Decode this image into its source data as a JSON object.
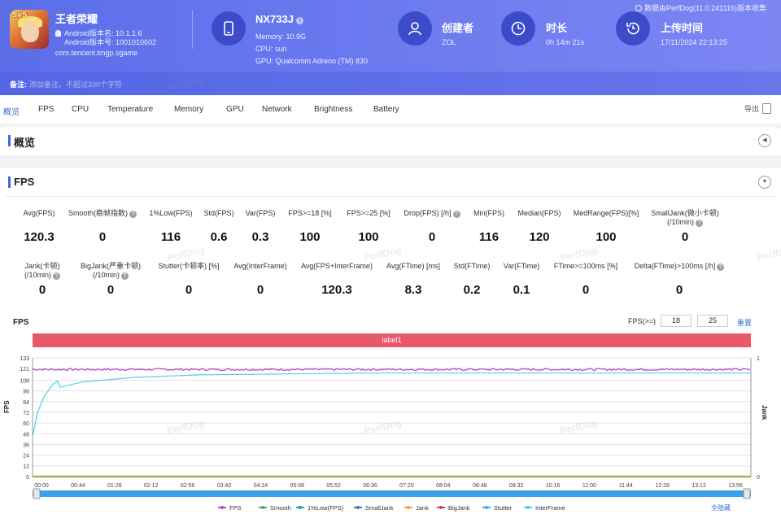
{
  "app": {
    "name": "王者荣耀",
    "icon_badge": "5v5",
    "version_name": "Android版本名: 10.1.1.6",
    "version_code": "Android版本号: 1001010602",
    "package": "com.tencent.tmgp.sgame"
  },
  "device": {
    "model": "NX733J",
    "memory": "Memory: 10.9G",
    "cpu": "CPU: sun",
    "gpu": "GPU: Qualcomm Adreno (TM) 830"
  },
  "creator": {
    "title": "创建者",
    "value": "ZOL"
  },
  "duration": {
    "title": "时长",
    "value": "0h 14m 21s"
  },
  "upload": {
    "title": "上传时间",
    "value": "17/11/2024 22:13:25"
  },
  "perfdog_note": "数据由PerfDog(11.0.241116)版本收集",
  "note": {
    "label": "备注:",
    "placeholder": "添加备注，不超过200个字符"
  },
  "tabs": [
    "概览",
    "FPS",
    "CPU",
    "Temperature",
    "Memory",
    "GPU",
    "Network",
    "Brightness",
    "Battery"
  ],
  "export_label": "导出",
  "overview_title": "概览",
  "fps_section_title": "FPS",
  "stats_row1": [
    {
      "label": "Avg(FPS)",
      "value": "120.3"
    },
    {
      "label": "Smooth(稳帧指数)",
      "value": "0",
      "help": true
    },
    {
      "label": "1%Low(FPS)",
      "value": "116"
    },
    {
      "label": "Std(FPS)",
      "value": "0.6"
    },
    {
      "label": "Var(FPS)",
      "value": "0.3"
    },
    {
      "label": "FPS>=18 [%]",
      "value": "100"
    },
    {
      "label": "FPS>=25 [%]",
      "value": "100"
    },
    {
      "label": "Drop(FPS) [/h]",
      "value": "0",
      "help": true
    },
    {
      "label": "Min(FPS)",
      "value": "116"
    },
    {
      "label": "Median(FPS)",
      "value": "120"
    },
    {
      "label": "MedRange(FPS)[%]",
      "value": "100"
    },
    {
      "label": "SmallJank(微小卡顿)",
      "label2": "(/10min)",
      "value": "0",
      "help": true
    }
  ],
  "stats_row2": [
    {
      "label": "Jank(卡顿)",
      "label2": "(/10min)",
      "value": "0",
      "help": true
    },
    {
      "label": "BigJank(严重卡顿)",
      "label2": "(/10min)",
      "value": "0",
      "help": true
    },
    {
      "label": "Stutter(卡顿率) [%]",
      "value": "0"
    },
    {
      "label": "Avg(InterFrame)",
      "value": "0"
    },
    {
      "label": "Avg(FPS+InterFrame)",
      "value": "120.3"
    },
    {
      "label": "Avg(FTime) [ms]",
      "value": "8.3"
    },
    {
      "label": "Std(FTime)",
      "value": "0.2"
    },
    {
      "label": "Var(FTime)",
      "value": "0.1"
    },
    {
      "label": "FTime>=100ms [%]",
      "value": "0"
    },
    {
      "label": "Delta(FTime)>100ms [/h]",
      "value": "0",
      "help": true
    }
  ],
  "chart_controls": {
    "title": "FPS",
    "threshold_label": "FPS(>=)",
    "threshold_1": "18",
    "threshold_2": "25",
    "reset_label": "重置",
    "band_label": "label1",
    "left_axis_name": "FPS",
    "right_axis_name": "Jank",
    "legend_all_label": "全隐藏"
  },
  "watermark": "PerfDog",
  "colors": {
    "header": "#5b6ee8",
    "accent": "#3b6bd8",
    "label_band": "#e8596b",
    "fps": "#b84fc6",
    "smooth": "#4caf50",
    "low1": "#26a69a",
    "smalljank": "#5c6bc0",
    "jank": "#f0a050",
    "bigjank": "#d64545",
    "stutter": "#42a5f5",
    "interframe": "#4dd0e1"
  },
  "chart_data": {
    "type": "line",
    "y_left": {
      "ticks": [
        0,
        12,
        24,
        36,
        48,
        60,
        72,
        84,
        96,
        108,
        121,
        133
      ],
      "range": [
        0,
        133
      ]
    },
    "y_right": {
      "ticks": [
        0,
        1
      ],
      "range": [
        0,
        1
      ]
    },
    "x_ticks": [
      "00:00",
      "00:44",
      "01:28",
      "02:12",
      "02:56",
      "03:40",
      "04:24",
      "05:08",
      "05:52",
      "06:36",
      "07:20",
      "08:04",
      "08:48",
      "09:32",
      "10:16",
      "11:00",
      "11:44",
      "12:28",
      "13:12",
      "13:56"
    ],
    "x_range_seconds": [
      0,
      861
    ],
    "series": [
      {
        "name": "FPS",
        "color_key": "fps",
        "values_desc": "flat near 120",
        "level": 120
      },
      {
        "name": "Smooth",
        "color_key": "smooth",
        "level": 0
      },
      {
        "name": "1%Low(FPS)",
        "color_key": "low1",
        "curve": [
          [
            0,
            45
          ],
          [
            6,
            72
          ],
          [
            14,
            90
          ],
          [
            25,
            104
          ],
          [
            30,
            107
          ],
          [
            33,
            100
          ],
          [
            60,
            106
          ],
          [
            120,
            111
          ],
          [
            200,
            114
          ],
          [
            300,
            115
          ],
          [
            400,
            116
          ],
          [
            861,
            116
          ]
        ]
      },
      {
        "name": "SmallJank",
        "color_key": "smalljank",
        "level": 0
      },
      {
        "name": "Jank",
        "color_key": "jank",
        "level": 0
      },
      {
        "name": "BigJank",
        "color_key": "bigjank",
        "level": 0
      },
      {
        "name": "Stutter",
        "color_key": "stutter",
        "level": 0
      },
      {
        "name": "InterFrame",
        "color_key": "interframe",
        "level": 0
      }
    ]
  }
}
